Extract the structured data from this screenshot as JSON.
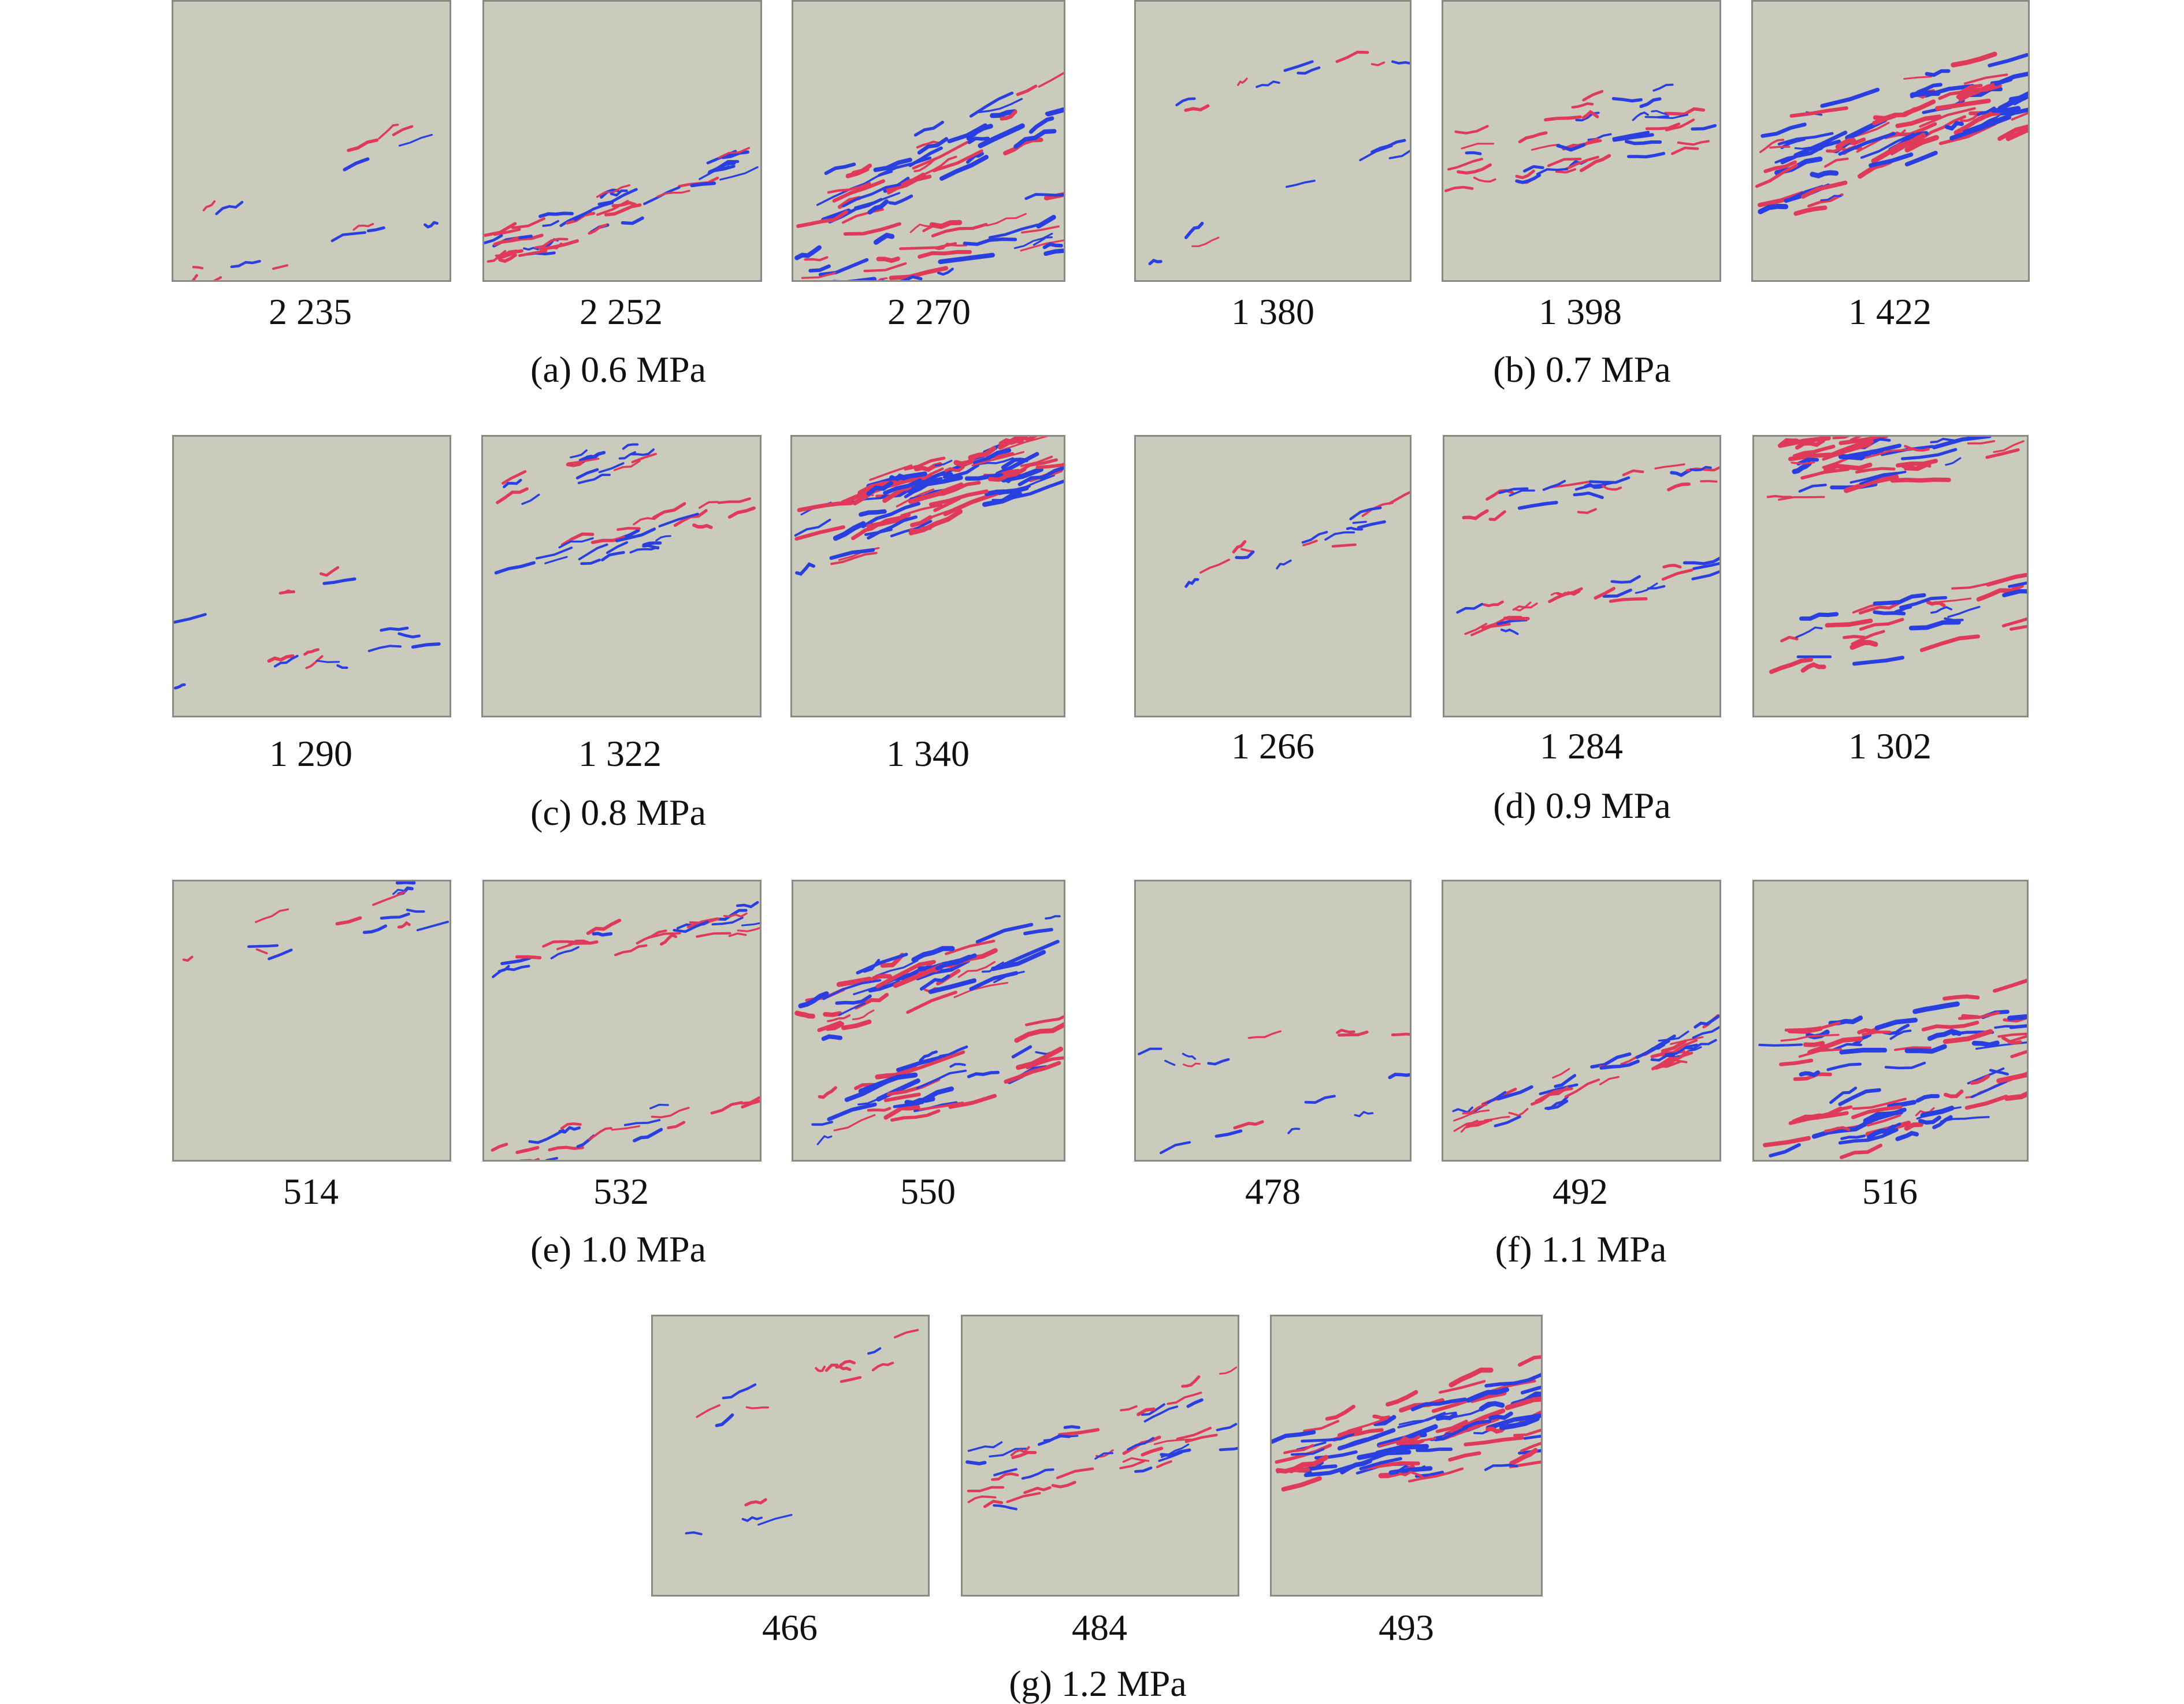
{
  "groups": [
    {
      "id": "a",
      "caption": "(a) 0.6 MPa",
      "steps": [
        {
          "label": "2 235",
          "stage": 1
        },
        {
          "label": "2 252",
          "stage": 2
        },
        {
          "label": "2 270",
          "stage": 3
        }
      ]
    },
    {
      "id": "b",
      "caption": "(b) 0.7 MPa",
      "steps": [
        {
          "label": "1 380",
          "stage": 1
        },
        {
          "label": "1 398",
          "stage": 2
        },
        {
          "label": "1 422",
          "stage": 3
        }
      ]
    },
    {
      "id": "c",
      "caption": "(c) 0.8 MPa",
      "steps": [
        {
          "label": "1 290",
          "stage": 1
        },
        {
          "label": "1 322",
          "stage": 2
        },
        {
          "label": "1 340",
          "stage": 3
        }
      ]
    },
    {
      "id": "d",
      "caption": "(d) 0.9 MPa",
      "steps": [
        {
          "label": "1 266",
          "stage": 1
        },
        {
          "label": "1 284",
          "stage": 2
        },
        {
          "label": "1 302",
          "stage": 3
        }
      ]
    },
    {
      "id": "e",
      "caption": "(e) 1.0 MPa",
      "steps": [
        {
          "label": "514",
          "stage": 1
        },
        {
          "label": "532",
          "stage": 2
        },
        {
          "label": "550",
          "stage": 3
        }
      ]
    },
    {
      "id": "f",
      "caption": "(f) 1.1 MPa",
      "steps": [
        {
          "label": "478",
          "stage": 1
        },
        {
          "label": "492",
          "stage": 2
        },
        {
          "label": "516",
          "stage": 3
        }
      ]
    },
    {
      "id": "g",
      "caption": "(g) 1.2 MPa",
      "steps": [
        {
          "label": "466",
          "stage": 1
        },
        {
          "label": "484",
          "stage": 2
        },
        {
          "label": "493",
          "stage": 3
        }
      ]
    }
  ],
  "colors": {
    "background": "#cbcbbd",
    "crack_tension": "#e03a5a",
    "crack_shear": "#2a3fe0",
    "frame": "#8a8a82"
  }
}
